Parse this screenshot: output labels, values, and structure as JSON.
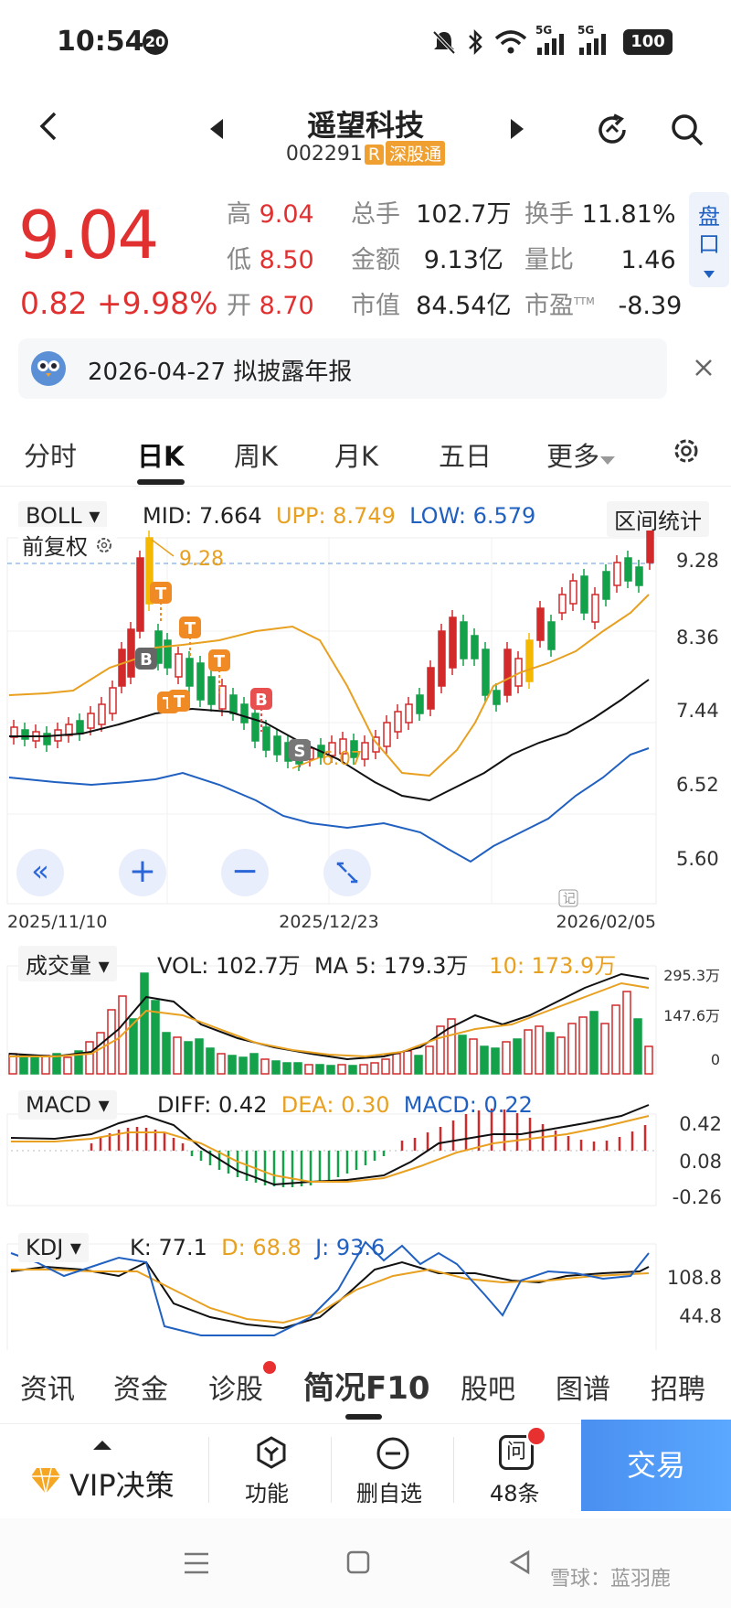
{
  "status": {
    "time": "10:54",
    "badge": "20",
    "sig1": "5G",
    "sig2": "5G",
    "battery": "100"
  },
  "header": {
    "name": "遥望科技",
    "code": "002291",
    "tag_r": "R",
    "tag_exchange": "深股通"
  },
  "quote": {
    "price": "9.04",
    "change": "0.82",
    "pct": "+9.98%",
    "high_l": "高",
    "high": "9.04",
    "low_l": "低",
    "low": "8.50",
    "open_l": "开",
    "open": "8.70",
    "vol_l": "总手",
    "vol": "102.7万",
    "amt_l": "金额",
    "amt": "9.13亿",
    "cap_l": "市值",
    "cap": "84.54亿",
    "turn_l": "换手",
    "turn": "11.81%",
    "vr_l": "量比",
    "vr": "1.46",
    "pe_l": "市盈",
    "pe_sup": "TTM",
    "pe": "-8.39",
    "pankou": "盘口"
  },
  "notice": {
    "text": "2026-04-27 拟披露年报"
  },
  "tabs": [
    "分时",
    "日K",
    "周K",
    "月K",
    "五日",
    "更多"
  ],
  "boll": {
    "selector": "BOLL",
    "mid": "MID: 7.664",
    "upp": "UPP: 8.749",
    "low": "LOW: 6.579",
    "range_btn": "区间统计",
    "adjust": "前复权",
    "high_mark": "9.28",
    "low_mark": "6.07"
  },
  "kline_axis": {
    "y": [
      "9.28",
      "8.36",
      "7.44",
      "6.52",
      "5.60"
    ],
    "x": [
      "2025/11/10",
      "2025/12/23",
      "2026/02/05"
    ],
    "ji": "记"
  },
  "volume": {
    "selector": "成交量",
    "vol": "VOL: 102.7万",
    "ma5": "MA 5: 179.3万",
    "ma10": "10: 173.9万",
    "y": [
      "295.3万",
      "147.6万",
      "0"
    ]
  },
  "macd": {
    "selector": "MACD",
    "diff": "DIFF: 0.42",
    "dea": "DEA: 0.30",
    "macd": "MACD: 0.22",
    "y": [
      "0.42",
      "0.08",
      "-0.26"
    ]
  },
  "kdj": {
    "selector": "KDJ",
    "k": "K: 77.1",
    "d": "D: 68.8",
    "j": "J: 93.6",
    "y": [
      "108.8",
      "44.8"
    ]
  },
  "f10_tabs": [
    "资讯",
    "资金",
    "诊股",
    "简况F10",
    "股吧",
    "图谱",
    "招聘"
  ],
  "actions": {
    "vip": "VIP决策",
    "func": "功能",
    "del": "删自选",
    "ask_count": "48条",
    "ask_icon": "问",
    "trade": "交易"
  },
  "watermark": "雪球：蓝羽鹿",
  "marker_labels": {
    "t": "T",
    "b": "B",
    "s": "S"
  },
  "nav_buttons": {
    "zoom_in": "+",
    "zoom_out": "−",
    "back": "«"
  }
}
